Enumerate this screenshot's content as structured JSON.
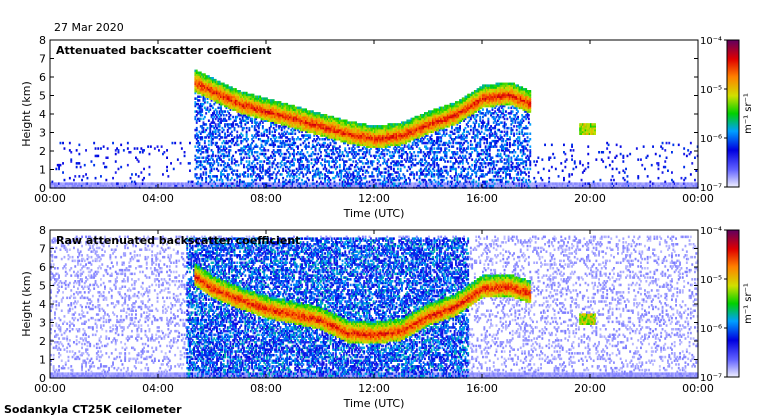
{
  "header": {
    "date": "27 Mar 2020"
  },
  "footer": {
    "site": "Sodankyla CT25K ceilometer"
  },
  "chart_data": [
    {
      "type": "heatmap",
      "title": "Attenuated backscatter coefficient",
      "xlabel": "Time (UTC)",
      "ylabel": "Height (km)",
      "xlim": [
        0,
        24
      ],
      "ylim": [
        0,
        8
      ],
      "x_ticks": [
        "00:00",
        "04:00",
        "08:00",
        "12:00",
        "16:00",
        "20:00",
        "00:00"
      ],
      "y_ticks": [
        "0",
        "1",
        "2",
        "3",
        "4",
        "5",
        "6",
        "7",
        "8"
      ],
      "colorbar": {
        "label": "m⁻¹ sr⁻¹",
        "scale": "log",
        "ticks": [
          "10⁻⁷",
          "10⁻⁶",
          "10⁻⁵",
          "10⁻⁴"
        ],
        "range": [
          1e-07,
          0.0001
        ]
      },
      "cloud_base_layer": {
        "time_h": [
          5.3,
          6.0,
          7.0,
          8.0,
          9.0,
          10.0,
          11.0,
          12.0,
          13.0,
          14.0,
          15.0,
          16.0,
          17.0,
          17.8
        ],
        "height_km": [
          5.5,
          5.0,
          4.3,
          3.9,
          3.5,
          3.1,
          2.7,
          2.4,
          2.6,
          3.2,
          3.7,
          4.6,
          4.8,
          4.3
        ]
      },
      "noise": "low"
    },
    {
      "type": "heatmap",
      "title": "Raw attenuated backscatter coefficient",
      "xlabel": "Time (UTC)",
      "ylabel": "Height (km)",
      "xlim": [
        0,
        24
      ],
      "ylim": [
        0,
        8
      ],
      "x_ticks": [
        "00:00",
        "04:00",
        "08:00",
        "12:00",
        "16:00",
        "20:00",
        "00:00"
      ],
      "y_ticks": [
        "0",
        "1",
        "2",
        "3",
        "4",
        "5",
        "6",
        "7",
        "8"
      ],
      "colorbar": {
        "label": "m⁻¹ sr⁻¹",
        "scale": "log",
        "ticks": [
          "10⁻⁷",
          "10⁻⁶",
          "10⁻⁵",
          "10⁻⁴"
        ],
        "range": [
          1e-07,
          0.0001
        ]
      },
      "cloud_base_layer": {
        "time_h": [
          5.3,
          6.0,
          7.0,
          8.0,
          9.0,
          10.0,
          11.0,
          12.0,
          13.0,
          14.0,
          15.0,
          16.0,
          17.0,
          17.8
        ],
        "height_km": [
          5.3,
          4.6,
          4.0,
          3.5,
          3.2,
          2.9,
          2.2,
          2.1,
          2.3,
          3.1,
          3.6,
          4.6,
          4.7,
          4.3
        ]
      },
      "noise": "high"
    }
  ]
}
